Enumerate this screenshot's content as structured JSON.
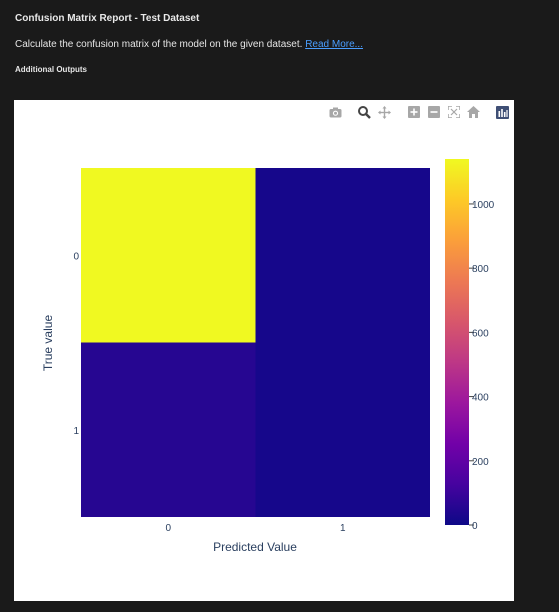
{
  "header": {
    "title": "Confusion Matrix Report - Test Dataset",
    "description": "Calculate the confusion matrix of the model on the given dataset.",
    "read_more": "Read More...",
    "additional_outputs": "Additional Outputs"
  },
  "modebar": {
    "buttons": [
      {
        "name": "camera-icon",
        "label": "Download plot as a png"
      },
      {
        "name": "zoom-icon",
        "label": "Zoom"
      },
      {
        "name": "pan-icon",
        "label": "Pan"
      },
      {
        "name": "zoom-in-icon",
        "label": "Zoom in"
      },
      {
        "name": "zoom-out-icon",
        "label": "Zoom out"
      },
      {
        "name": "autoscale-icon",
        "label": "Autoscale"
      },
      {
        "name": "home-icon",
        "label": "Reset axes"
      },
      {
        "name": "plotly-logo-icon",
        "label": "Produced with Plotly"
      }
    ]
  },
  "chart_data": {
    "type": "heatmap",
    "title": "",
    "xlabel": "Predicted Value",
    "ylabel": "True value",
    "x_categories": [
      "0",
      "1"
    ],
    "y_categories": [
      "0",
      "1"
    ],
    "z": [
      [
        1140,
        20
      ],
      [
        55,
        20
      ]
    ],
    "colorscale": "plasma",
    "zlim": [
      0,
      1140
    ],
    "colorbar_ticks": [
      0,
      200,
      400,
      600,
      800,
      1000
    ]
  }
}
